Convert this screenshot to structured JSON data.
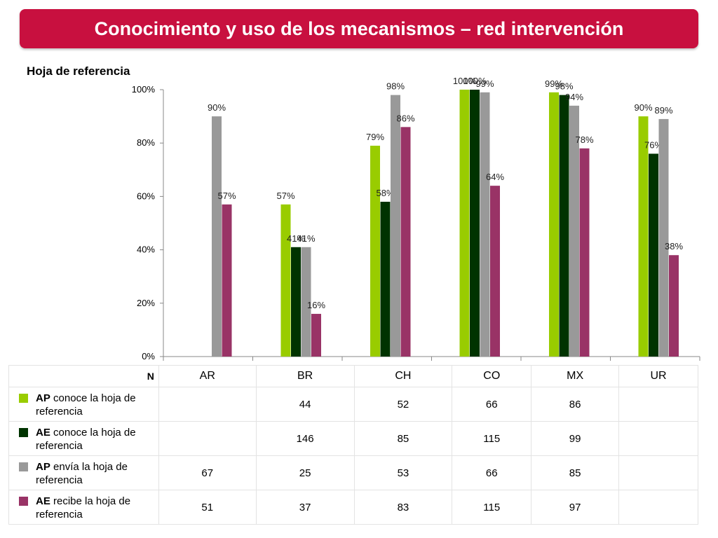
{
  "title": "Conocimiento y uso de los mecanismos – red intervención",
  "subtitle": "Hoja de referencia",
  "colors": {
    "banner": "#c8103f",
    "series": [
      "#99cc00",
      "#003300",
      "#999999",
      "#993366"
    ]
  },
  "chart_data": {
    "type": "bar",
    "categories": [
      "AR",
      "BR",
      "CH",
      "CO",
      "MX",
      "UR"
    ],
    "yticks": [
      "0%",
      "20%",
      "40%",
      "60%",
      "80%",
      "100%"
    ],
    "ylim": [
      0,
      100
    ],
    "series": [
      {
        "values": [
          null,
          57,
          79,
          100,
          99,
          90
        ],
        "labels": [
          "",
          "57%",
          "79%",
          "100%",
          "99%",
          "90%"
        ]
      },
      {
        "values": [
          null,
          41,
          58,
          100,
          98,
          76
        ],
        "labels": [
          "",
          "41%",
          "58%",
          "100%",
          "98%",
          "76%"
        ]
      },
      {
        "values": [
          90,
          41,
          98,
          99,
          94,
          89
        ],
        "labels": [
          "90%",
          "41%",
          "98%",
          "99%",
          "94%",
          "89%"
        ]
      },
      {
        "values": [
          57,
          16,
          86,
          64,
          78,
          38
        ],
        "labels": [
          "57%",
          "16%",
          "86%",
          "64%",
          "78%",
          "38%"
        ]
      }
    ]
  },
  "table": {
    "n_label": "N",
    "columns": [
      "AR",
      "BR",
      "CH",
      "CO",
      "MX",
      "UR"
    ],
    "rows": [
      {
        "bold": "AP",
        "rest": "conoce la hoja de referencia",
        "values": [
          "",
          "44",
          "52",
          "66",
          "86",
          ""
        ]
      },
      {
        "bold": "AE",
        "rest": "conoce la hoja de referencia",
        "values": [
          "",
          "146",
          "85",
          "115",
          "99",
          ""
        ]
      },
      {
        "bold": "AP",
        "rest": "envía la hoja de referencia",
        "values": [
          "67",
          "25",
          "53",
          "66",
          "85",
          ""
        ]
      },
      {
        "bold": "AE",
        "rest": "recibe la hoja de referencia",
        "values": [
          "51",
          "37",
          "83",
          "115",
          "97",
          ""
        ]
      }
    ]
  }
}
